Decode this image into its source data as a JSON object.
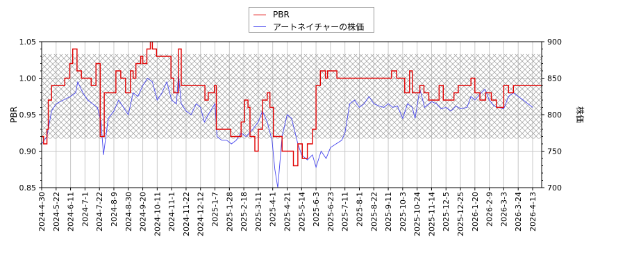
{
  "legend": {
    "items": [
      {
        "label": "PBR",
        "color": "#e00000"
      },
      {
        "label": "アートネイチャーの株価",
        "color": "#4444ee"
      }
    ]
  },
  "chart_data": {
    "type": "line",
    "title": "",
    "xlabel": "",
    "ylabel": "PBR",
    "y2label": "株価",
    "ylim": [
      0.85,
      1.05
    ],
    "y2lim": [
      700,
      900
    ],
    "yticks": [
      "0.85",
      "0.90",
      "0.95",
      "1.00",
      "1.05"
    ],
    "y2ticks": [
      "700",
      "750",
      "800",
      "850",
      "900"
    ],
    "grid": true,
    "legend_position": "top-center",
    "shaded_band": {
      "pbr_range": [
        0.917,
        1.033
      ],
      "price_range": [
        766,
        883
      ],
      "style": "crosshatch"
    },
    "x_tick_labels": [
      "2024-4-30",
      "2024-5-22",
      "2024-6-11",
      "2024-7-1",
      "2024-7-22",
      "2024-8-9",
      "2024-8-30",
      "2024-9-20",
      "2024-10-11",
      "2024-11-1",
      "2024-11-22",
      "2024-12-12",
      "2025-1-7",
      "2025-1-28",
      "2025-2-18",
      "2025-3-11",
      "2025-4-1",
      "2025-4-21",
      "2025-5-14",
      "2025-6-3",
      "2025-6-23",
      "2025-7-11",
      "2025-8-1",
      "2025-8-22",
      "2025-9-11",
      "2025-10-3",
      "2025-10-24",
      "2025-11-14",
      "2025-12-5",
      "2025-12-25",
      "2026-1-20",
      "2026-2-9",
      "2026-3-3",
      "2026-3-24",
      "2026-4-13"
    ],
    "series": [
      {
        "name": "PBR",
        "color": "#e00000",
        "step": true,
        "points": [
          [
            "2024-4-30",
            0.92
          ],
          [
            "2024-5-3",
            0.91
          ],
          [
            "2024-5-8",
            0.93
          ],
          [
            "2024-5-10",
            0.97
          ],
          [
            "2024-5-15",
            0.99
          ],
          [
            "2024-6-3",
            1.0
          ],
          [
            "2024-6-10",
            1.02
          ],
          [
            "2024-6-14",
            1.04
          ],
          [
            "2024-6-20",
            1.01
          ],
          [
            "2024-6-26",
            1.0
          ],
          [
            "2024-7-10",
            0.99
          ],
          [
            "2024-7-17",
            1.02
          ],
          [
            "2024-7-23",
            0.92
          ],
          [
            "2024-7-28",
            0.98
          ],
          [
            "2024-8-12",
            1.01
          ],
          [
            "2024-8-19",
            1.0
          ],
          [
            "2024-8-26",
            0.98
          ],
          [
            "2024-9-2",
            1.01
          ],
          [
            "2024-9-6",
            1.0
          ],
          [
            "2024-9-10",
            1.02
          ],
          [
            "2024-9-17",
            1.03
          ],
          [
            "2024-9-20",
            1.02
          ],
          [
            "2024-9-26",
            1.04
          ],
          [
            "2024-10-1",
            1.05
          ],
          [
            "2024-10-4",
            1.04
          ],
          [
            "2024-10-10",
            1.03
          ],
          [
            "2024-10-31",
            1.0
          ],
          [
            "2024-11-4",
            0.98
          ],
          [
            "2024-11-11",
            1.04
          ],
          [
            "2024-11-15",
            0.99
          ],
          [
            "2024-12-20",
            0.97
          ],
          [
            "2024-12-26",
            0.98
          ],
          [
            "2025-1-6",
            0.99
          ],
          [
            "2025-1-9",
            0.93
          ],
          [
            "2025-1-30",
            0.92
          ],
          [
            "2025-2-14",
            0.94
          ],
          [
            "2025-2-19",
            0.97
          ],
          [
            "2025-2-24",
            0.96
          ],
          [
            "2025-2-27",
            0.92
          ],
          [
            "2025-3-6",
            0.9
          ],
          [
            "2025-3-11",
            0.93
          ],
          [
            "2025-3-17",
            0.97
          ],
          [
            "2025-3-24",
            0.98
          ],
          [
            "2025-3-28",
            0.96
          ],
          [
            "2025-4-2",
            0.92
          ],
          [
            "2025-4-14",
            0.9
          ],
          [
            "2025-5-1",
            0.88
          ],
          [
            "2025-5-8",
            0.91
          ],
          [
            "2025-5-15",
            0.89
          ],
          [
            "2025-5-22",
            0.91
          ],
          [
            "2025-5-29",
            0.93
          ],
          [
            "2025-6-3",
            0.99
          ],
          [
            "2025-6-9",
            1.01
          ],
          [
            "2025-6-16",
            1.0
          ],
          [
            "2025-6-19",
            1.01
          ],
          [
            "2025-7-1",
            1.0
          ],
          [
            "2025-9-16",
            1.01
          ],
          [
            "2025-9-24",
            1.0
          ],
          [
            "2025-10-6",
            0.98
          ],
          [
            "2025-10-13",
            1.01
          ],
          [
            "2025-10-17",
            0.98
          ],
          [
            "2025-10-28",
            0.99
          ],
          [
            "2025-11-3",
            0.98
          ],
          [
            "2025-11-10",
            0.97
          ],
          [
            "2025-11-25",
            0.99
          ],
          [
            "2025-12-1",
            0.97
          ],
          [
            "2025-12-16",
            0.98
          ],
          [
            "2025-12-22",
            0.99
          ],
          [
            "2026-1-13",
            1.0
          ],
          [
            "2026-1-20",
            0.98
          ],
          [
            "2026-1-27",
            0.97
          ],
          [
            "2026-2-4",
            0.98
          ],
          [
            "2026-2-12",
            0.97
          ],
          [
            "2026-2-20",
            0.96
          ],
          [
            "2026-3-3",
            0.99
          ],
          [
            "2026-3-10",
            0.98
          ],
          [
            "2026-3-17",
            0.99
          ],
          [
            "2026-4-13",
            0.99
          ]
        ]
      },
      {
        "name": "アートネイチャーの株価",
        "color": "#4444ee",
        "step": false,
        "points": [
          [
            "2024-4-30",
            760
          ],
          [
            "2024-5-8",
            770
          ],
          [
            "2024-5-15",
            805
          ],
          [
            "2024-5-22",
            815
          ],
          [
            "2024-6-1",
            820
          ],
          [
            "2024-6-11",
            825
          ],
          [
            "2024-6-18",
            830
          ],
          [
            "2024-6-21",
            845
          ],
          [
            "2024-6-28",
            830
          ],
          [
            "2024-7-5",
            820
          ],
          [
            "2024-7-12",
            815
          ],
          [
            "2024-7-19",
            810
          ],
          [
            "2024-7-24",
            790
          ],
          [
            "2024-7-27",
            745
          ],
          [
            "2024-8-2",
            795
          ],
          [
            "2024-8-9",
            805
          ],
          [
            "2024-8-16",
            820
          ],
          [
            "2024-8-23",
            810
          ],
          [
            "2024-8-30",
            800
          ],
          [
            "2024-9-6",
            830
          ],
          [
            "2024-9-13",
            825
          ],
          [
            "2024-9-20",
            840
          ],
          [
            "2024-9-27",
            850
          ],
          [
            "2024-10-4",
            845
          ],
          [
            "2024-10-11",
            820
          ],
          [
            "2024-10-18",
            830
          ],
          [
            "2024-10-25",
            845
          ],
          [
            "2024-11-1",
            820
          ],
          [
            "2024-11-8",
            815
          ],
          [
            "2024-11-11",
            855
          ],
          [
            "2024-11-15",
            815
          ],
          [
            "2024-11-22",
            805
          ],
          [
            "2024-11-29",
            800
          ],
          [
            "2024-12-6",
            815
          ],
          [
            "2024-12-12",
            810
          ],
          [
            "2024-12-19",
            790
          ],
          [
            "2024-12-26",
            800
          ],
          [
            "2025-1-7",
            815
          ],
          [
            "2025-1-10",
            770
          ],
          [
            "2025-1-17",
            765
          ],
          [
            "2025-1-24",
            765
          ],
          [
            "2025-1-31",
            760
          ],
          [
            "2025-2-7",
            765
          ],
          [
            "2025-2-14",
            775
          ],
          [
            "2025-2-21",
            770
          ],
          [
            "2025-3-3",
            780
          ],
          [
            "2025-3-11",
            790
          ],
          [
            "2025-3-17",
            805
          ],
          [
            "2025-3-24",
            790
          ],
          [
            "2025-3-31",
            765
          ],
          [
            "2025-4-4",
            725
          ],
          [
            "2025-4-8",
            700
          ],
          [
            "2025-4-14",
            770
          ],
          [
            "2025-4-21",
            800
          ],
          [
            "2025-4-28",
            795
          ],
          [
            "2025-5-8",
            760
          ],
          [
            "2025-5-14",
            745
          ],
          [
            "2025-5-22",
            738
          ],
          [
            "2025-5-29",
            745
          ],
          [
            "2025-6-3",
            728
          ],
          [
            "2025-6-10",
            750
          ],
          [
            "2025-6-17",
            740
          ],
          [
            "2025-6-23",
            755
          ],
          [
            "2025-6-30",
            760
          ],
          [
            "2025-7-7",
            765
          ],
          [
            "2025-7-11",
            775
          ],
          [
            "2025-7-18",
            815
          ],
          [
            "2025-7-25",
            820
          ],
          [
            "2025-8-1",
            810
          ],
          [
            "2025-8-8",
            815
          ],
          [
            "2025-8-15",
            825
          ],
          [
            "2025-8-22",
            815
          ],
          [
            "2025-8-29",
            812
          ],
          [
            "2025-9-5",
            810
          ],
          [
            "2025-9-11",
            815
          ],
          [
            "2025-9-18",
            810
          ],
          [
            "2025-9-25",
            812
          ],
          [
            "2025-10-3",
            795
          ],
          [
            "2025-10-10",
            815
          ],
          [
            "2025-10-17",
            810
          ],
          [
            "2025-10-21",
            795
          ],
          [
            "2025-10-28",
            835
          ],
          [
            "2025-11-4",
            810
          ],
          [
            "2025-11-14",
            818
          ],
          [
            "2025-11-21",
            815
          ],
          [
            "2025-11-28",
            808
          ],
          [
            "2025-12-5",
            810
          ],
          [
            "2025-12-12",
            805
          ],
          [
            "2025-12-19",
            812
          ],
          [
            "2025-12-25",
            808
          ],
          [
            "2026-1-6",
            810
          ],
          [
            "2026-1-13",
            825
          ],
          [
            "2026-1-20",
            820
          ],
          [
            "2026-1-27",
            828
          ],
          [
            "2026-2-3",
            835
          ],
          [
            "2026-2-9",
            820
          ],
          [
            "2026-2-16",
            812
          ],
          [
            "2026-2-23",
            810
          ],
          [
            "2026-3-3",
            808
          ],
          [
            "2026-3-10",
            825
          ],
          [
            "2026-3-17",
            830
          ],
          [
            "2026-3-24",
            825
          ],
          [
            "2026-3-31",
            820
          ],
          [
            "2026-4-13",
            810
          ]
        ]
      }
    ]
  }
}
